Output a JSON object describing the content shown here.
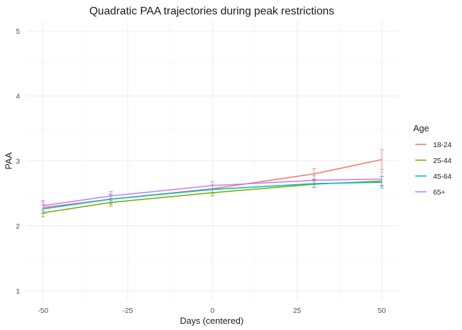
{
  "chart_data": {
    "type": "line",
    "title": "Quadratic PAA trajectories during peak restrictions",
    "xlabel": "Days  (centered)",
    "ylabel": "PAA",
    "x": [
      -50,
      -30,
      0,
      30,
      50
    ],
    "xticks": [
      -50,
      -25,
      0,
      25,
      50
    ],
    "yticks": [
      1,
      2,
      3,
      4,
      5
    ],
    "xlim": [
      -55,
      55
    ],
    "ylim": [
      0.85,
      5.15
    ],
    "grid": true,
    "legend": {
      "title": "Age",
      "placement": "right"
    },
    "series": [
      {
        "name": "18-24",
        "color": "#F8766D",
        "values": [
          2.28,
          2.41,
          2.57,
          2.8,
          3.02
        ],
        "lower": [
          2.19,
          2.33,
          2.51,
          2.72,
          2.87
        ],
        "upper": [
          2.37,
          2.49,
          2.63,
          2.88,
          3.17
        ]
      },
      {
        "name": "25-44",
        "color": "#7CAE00",
        "values": [
          2.2,
          2.36,
          2.51,
          2.64,
          2.69
        ],
        "lower": [
          2.14,
          2.3,
          2.46,
          2.59,
          2.62
        ],
        "upper": [
          2.26,
          2.42,
          2.56,
          2.69,
          2.76
        ]
      },
      {
        "name": "45-64",
        "color": "#00BFC4",
        "values": [
          2.26,
          2.41,
          2.56,
          2.65,
          2.67
        ],
        "lower": [
          2.19,
          2.35,
          2.5,
          2.59,
          2.58
        ],
        "upper": [
          2.33,
          2.47,
          2.62,
          2.71,
          2.76
        ]
      },
      {
        "name": "65+",
        "color": "#C77CFF",
        "values": [
          2.31,
          2.46,
          2.62,
          2.7,
          2.72
        ],
        "lower": [
          2.23,
          2.39,
          2.56,
          2.63,
          2.61
        ],
        "upper": [
          2.39,
          2.53,
          2.68,
          2.77,
          2.83
        ]
      }
    ]
  }
}
